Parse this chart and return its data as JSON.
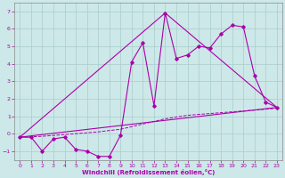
{
  "xlabel": "Windchill (Refroidissement éolien,°C)",
  "background_color": "#cde8e8",
  "grid_color": "#aacccc",
  "line_color": "#aa00aa",
  "xlim": [
    -0.5,
    23.5
  ],
  "ylim": [
    -1.5,
    7.5
  ],
  "xticks": [
    0,
    1,
    2,
    3,
    4,
    5,
    6,
    7,
    8,
    9,
    10,
    11,
    12,
    13,
    14,
    15,
    16,
    17,
    18,
    19,
    20,
    21,
    22,
    23
  ],
  "yticks": [
    -1,
    0,
    1,
    2,
    3,
    4,
    5,
    6,
    7
  ],
  "series1_x": [
    0,
    1,
    2,
    3,
    4,
    5,
    6,
    7,
    8,
    9,
    10,
    11,
    12,
    13,
    14,
    15,
    16,
    17,
    18,
    19,
    20,
    21,
    22,
    23
  ],
  "series1_y": [
    -0.2,
    -0.2,
    -1.0,
    -0.3,
    -0.2,
    -0.9,
    -1.0,
    -1.3,
    -1.3,
    -0.1,
    4.1,
    5.2,
    1.6,
    6.9,
    4.3,
    4.5,
    5.0,
    4.9,
    5.7,
    6.2,
    6.1,
    3.3,
    1.8,
    1.5
  ],
  "series2_x": [
    0,
    23
  ],
  "series2_y": [
    -0.2,
    1.5
  ],
  "series3_x": [
    0,
    13,
    23
  ],
  "series3_y": [
    -0.2,
    6.9,
    1.5
  ],
  "series4_x": [
    0,
    1,
    2,
    3,
    4,
    5,
    6,
    7,
    8,
    9,
    10,
    11,
    12,
    13,
    14,
    15,
    16,
    17,
    18,
    19,
    20,
    21,
    22,
    23
  ],
  "series4_y": [
    -0.2,
    -0.18,
    -0.15,
    -0.1,
    -0.05,
    0.0,
    0.05,
    0.1,
    0.18,
    0.25,
    0.4,
    0.55,
    0.7,
    0.85,
    0.95,
    1.05,
    1.1,
    1.15,
    1.2,
    1.25,
    1.3,
    1.35,
    1.4,
    1.45
  ]
}
